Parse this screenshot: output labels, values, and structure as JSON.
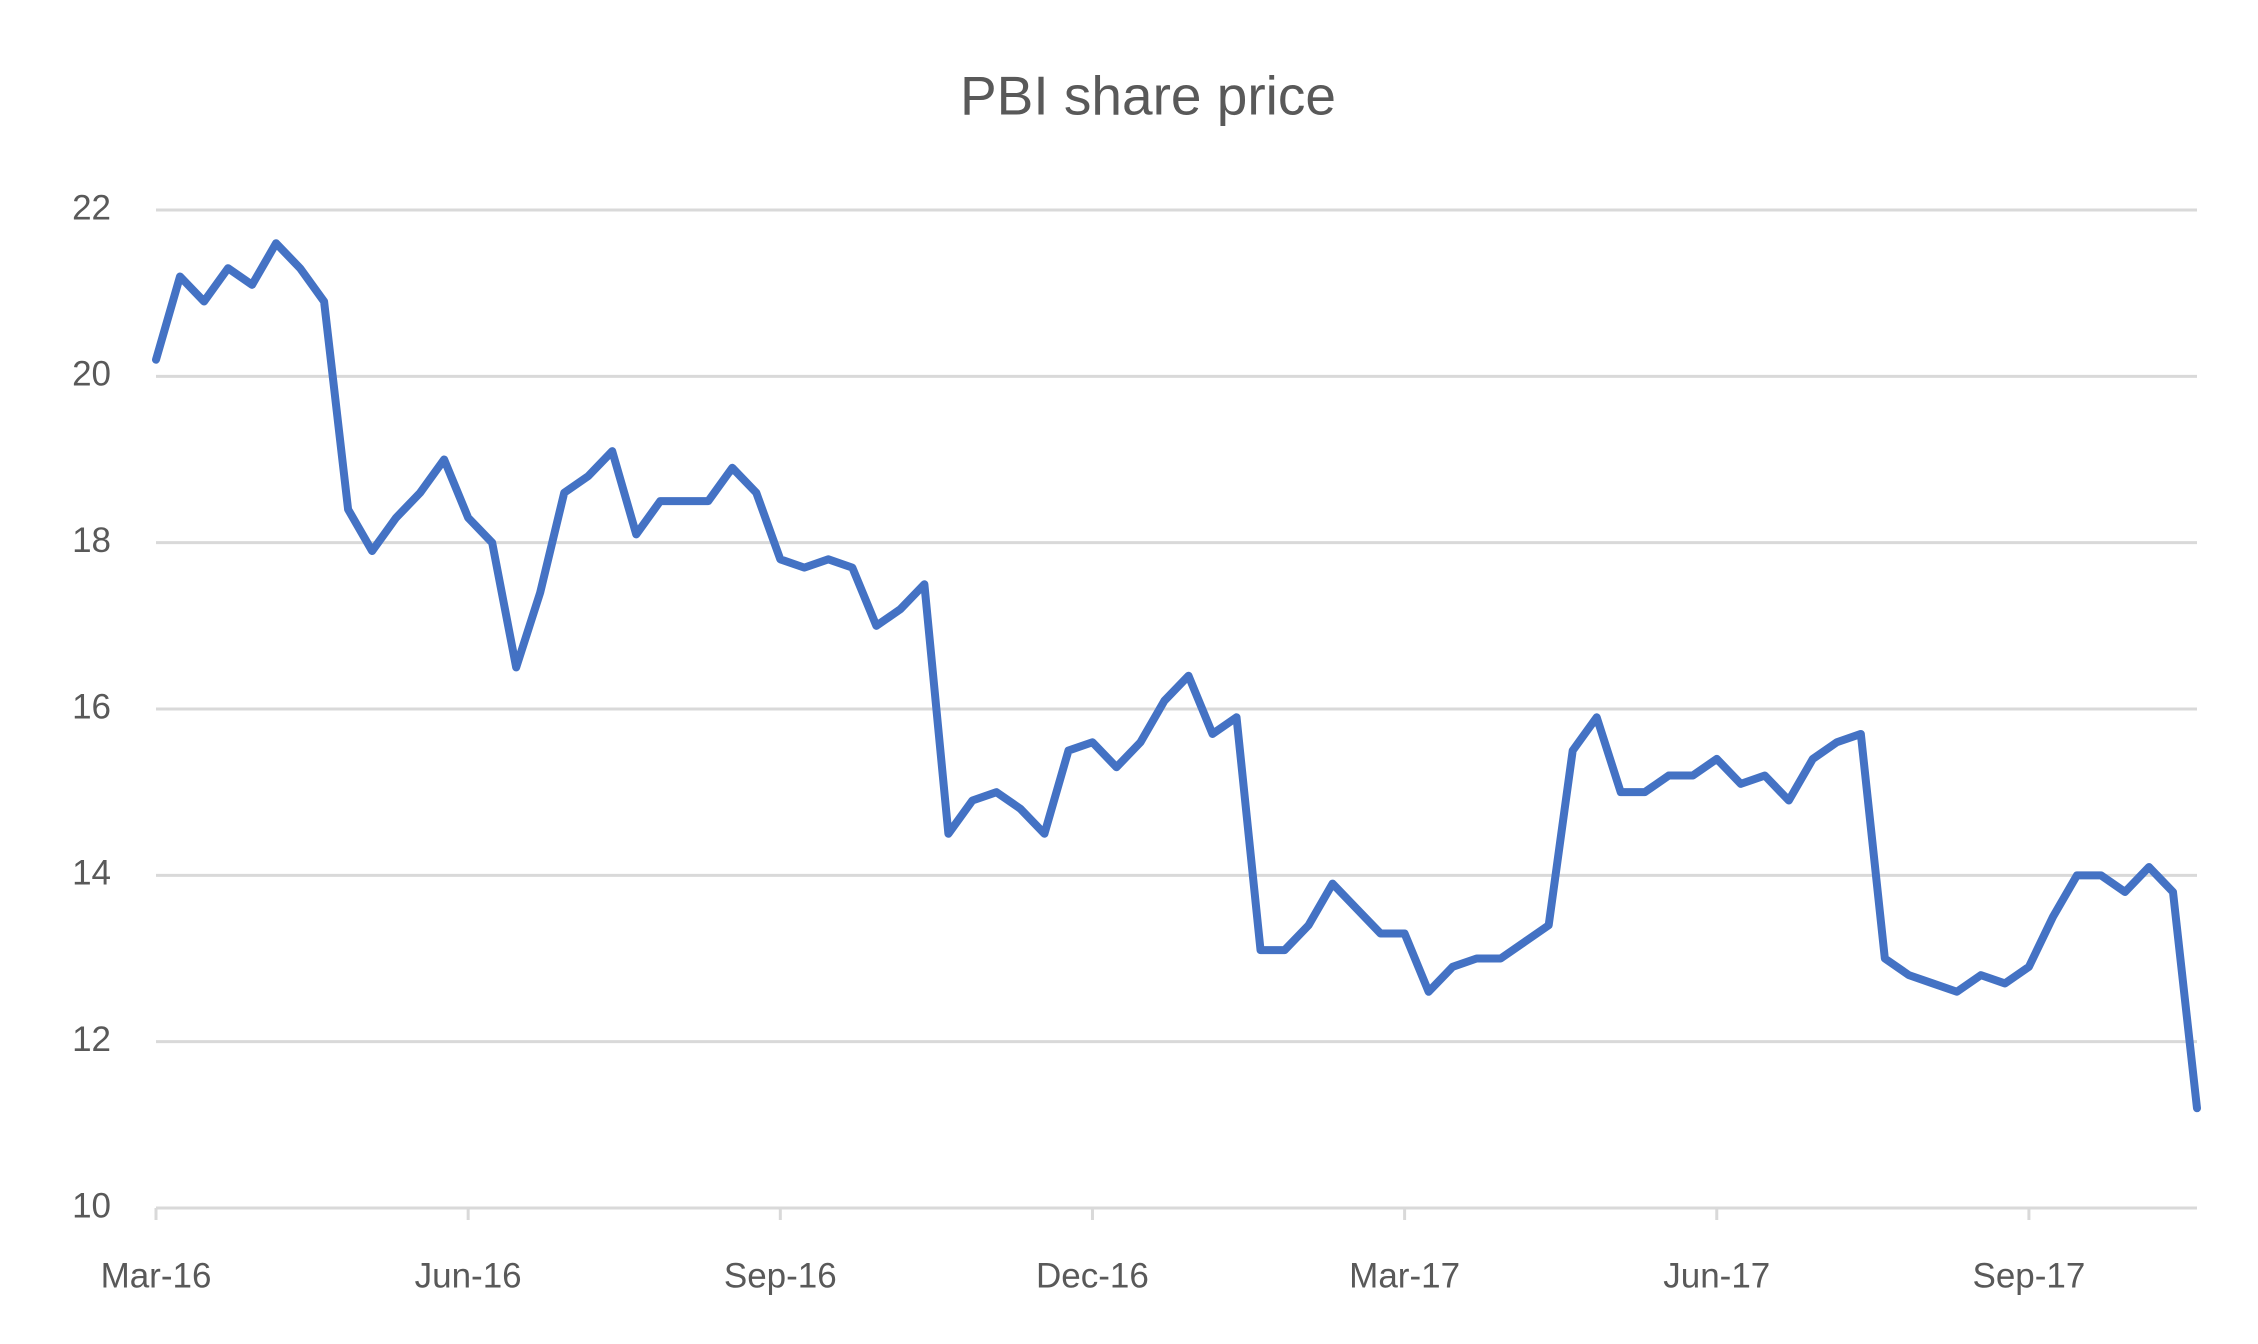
{
  "chart_data": {
    "type": "line",
    "title": "PBI share price",
    "series": [
      {
        "name": "PBI",
        "color": "#4472c4",
        "values": [
          20.2,
          21.2,
          20.9,
          21.3,
          21.1,
          21.6,
          21.3,
          20.9,
          18.4,
          17.9,
          18.3,
          18.6,
          19.0,
          18.3,
          18.0,
          16.5,
          17.4,
          18.6,
          18.8,
          19.1,
          18.1,
          18.5,
          18.5,
          18.5,
          18.9,
          18.6,
          17.8,
          17.7,
          17.8,
          17.7,
          17.0,
          17.2,
          17.5,
          14.5,
          14.9,
          15.0,
          14.8,
          14.5,
          15.5,
          15.6,
          15.3,
          15.6,
          16.1,
          16.4,
          15.7,
          15.9,
          13.1,
          13.1,
          13.4,
          13.9,
          13.6,
          13.3,
          13.3,
          12.6,
          12.9,
          13.0,
          13.0,
          13.2,
          13.4,
          15.5,
          15.9,
          15.0,
          15.0,
          15.2,
          15.2,
          15.4,
          15.1,
          15.2,
          14.9,
          15.4,
          15.6,
          15.7,
          13.0,
          12.8,
          12.7,
          12.6,
          12.8,
          12.7,
          12.9,
          13.5,
          14.0,
          14.0,
          13.8,
          14.1,
          13.8,
          11.2
        ]
      }
    ],
    "xlim": [
      0,
      85
    ],
    "xticks": [
      {
        "value": 0,
        "label": "Mar-16"
      },
      {
        "value": 13,
        "label": "Jun-16"
      },
      {
        "value": 26,
        "label": "Sep-16"
      },
      {
        "value": 39,
        "label": "Dec-16"
      },
      {
        "value": 52,
        "label": "Mar-17"
      },
      {
        "value": 65,
        "label": "Jun-17"
      },
      {
        "value": 78,
        "label": "Sep-17"
      }
    ],
    "ylim": [
      10,
      22
    ],
    "yticks": [
      10,
      12,
      14,
      16,
      18,
      20,
      22
    ],
    "grid": true
  }
}
